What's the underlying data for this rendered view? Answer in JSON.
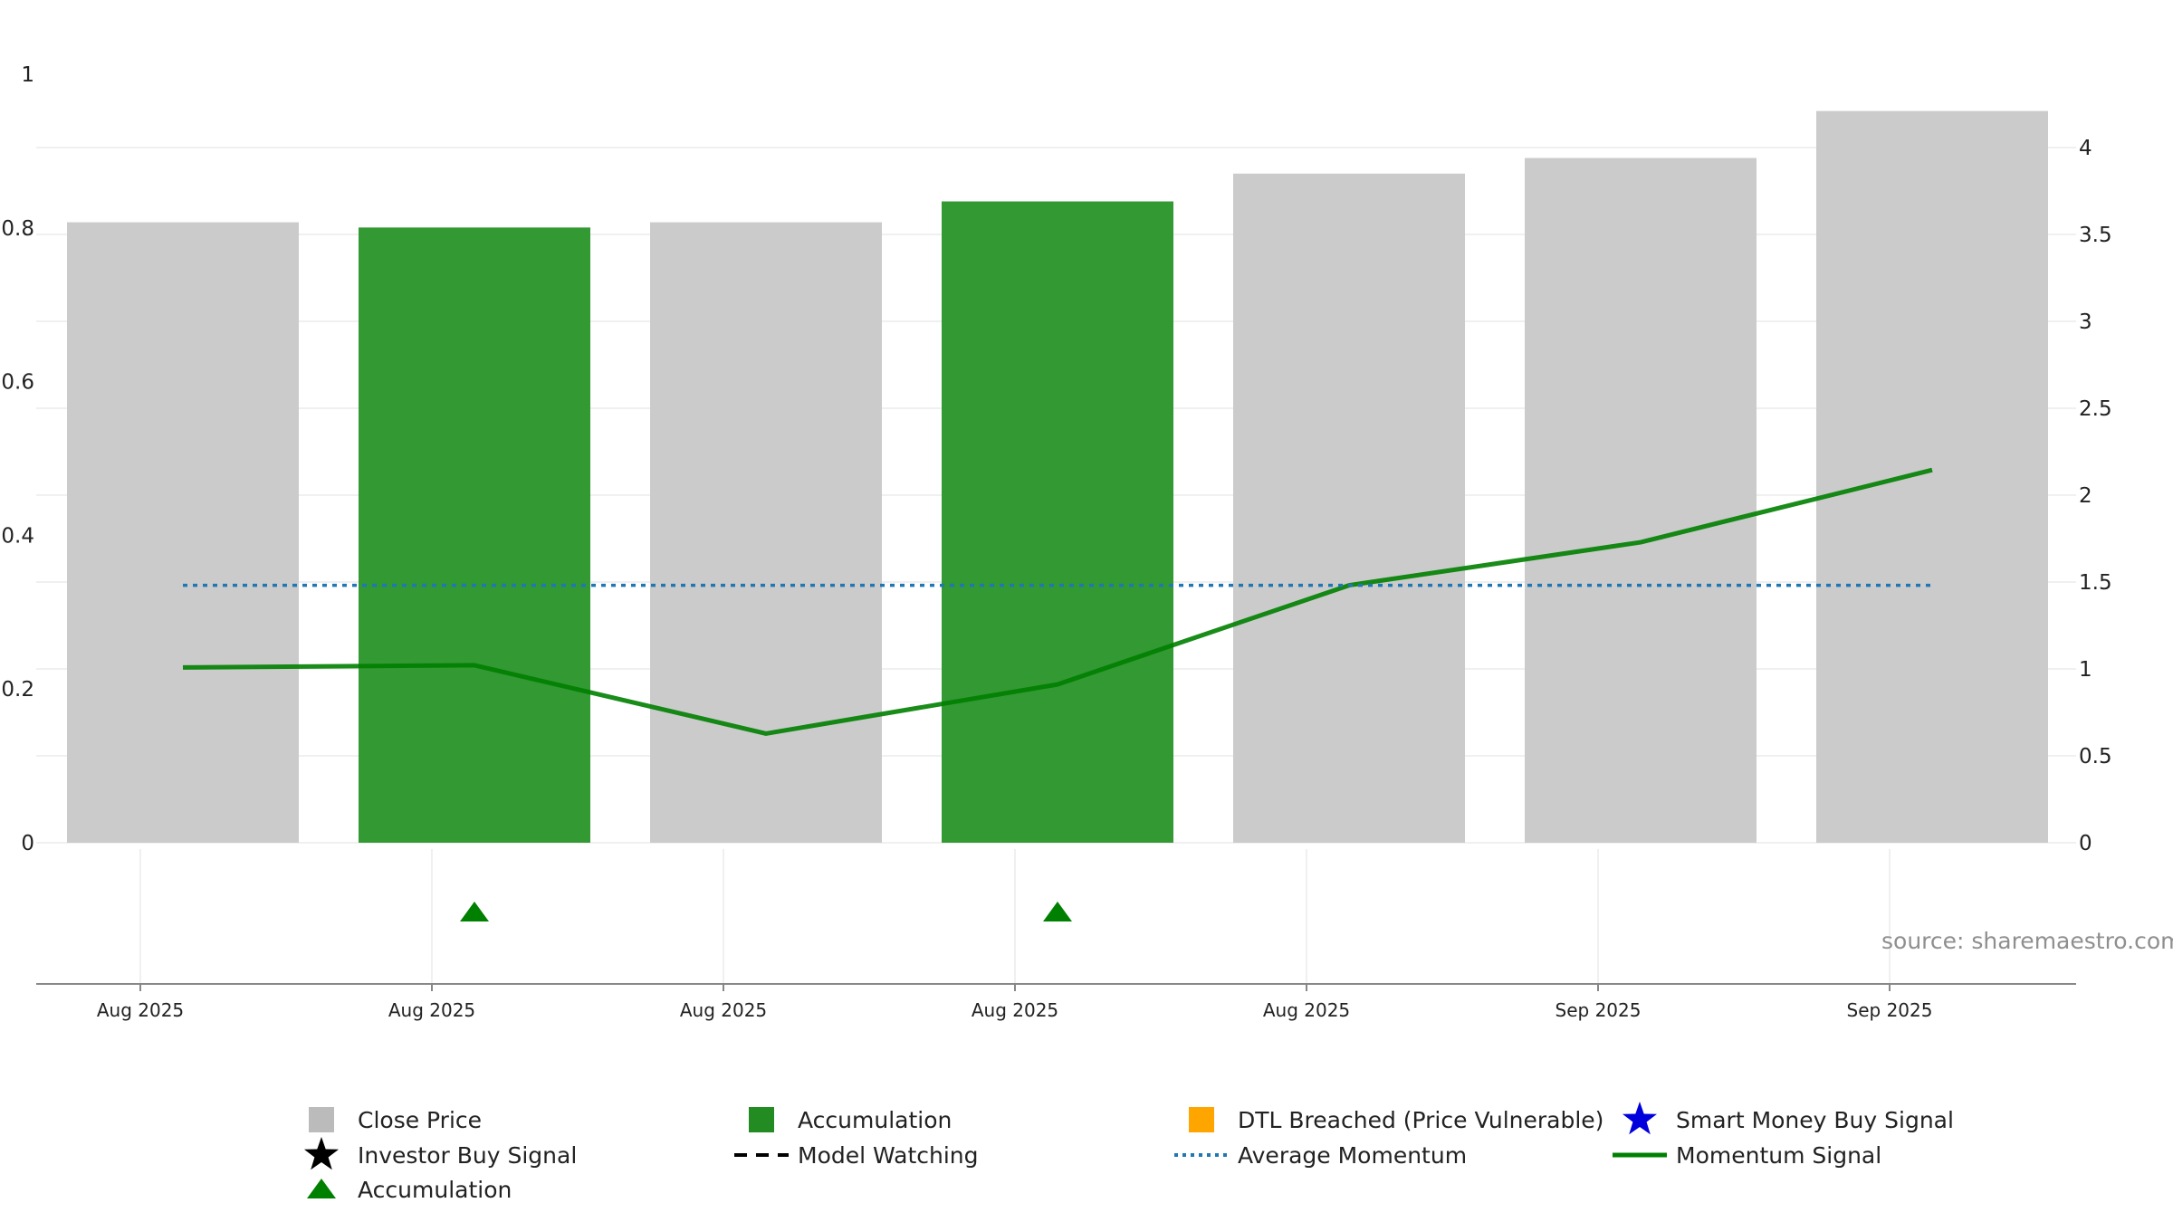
{
  "chart_data": {
    "type": "bar",
    "categories": [
      "Aug 2025",
      "Aug 2025",
      "Aug 2025",
      "Aug 2025",
      "Aug 2025",
      "Sep 2025",
      "Sep 2025"
    ],
    "left_axis": {
      "ylim": [
        0,
        1
      ],
      "ticks": [
        "0",
        "0.2",
        "0.4",
        "0.6",
        "0.8",
        "1"
      ]
    },
    "right_axis": {
      "ylim": [
        0,
        4.0
      ],
      "ticks": [
        "0",
        "0.5",
        "1",
        "1.5",
        "2",
        "2.5",
        "3",
        "3.5",
        "4"
      ]
    },
    "bars": {
      "name": "Close Price",
      "values": [
        3.57,
        3.54,
        3.57,
        3.69,
        3.85,
        3.94,
        4.21
      ],
      "colors": [
        "#cbcbcb",
        "#339933",
        "#cbcbcb",
        "#339933",
        "#cbcbcb",
        "#cbcbcb",
        "#cbcbcb"
      ]
    },
    "series": [
      {
        "name": "Momentum Signal",
        "axis": "left",
        "values": [
          0.228,
          0.231,
          0.142,
          0.206,
          0.335,
          0.391,
          0.485
        ],
        "color": "#008000"
      },
      {
        "name": "Average Momentum",
        "axis": "left",
        "values": [
          0.335,
          0.335,
          0.335,
          0.335,
          0.335,
          0.335,
          0.335
        ],
        "color": "#1f77b4"
      }
    ],
    "markers": [
      {
        "name": "Accumulation",
        "category_index": 1,
        "color": "#008000",
        "shape": "triangle"
      },
      {
        "name": "Accumulation",
        "category_index": 3,
        "color": "#008000",
        "shape": "triangle"
      }
    ],
    "source_text": "source: sharemaestro.com",
    "legend": [
      {
        "label": "Close Price",
        "symbol": "square",
        "color": "#bbbbbb"
      },
      {
        "label": "Accumulation",
        "symbol": "square",
        "color": "#228b22"
      },
      {
        "label": "DTL Breached (Price Vulnerable)",
        "symbol": "square",
        "color": "#ffa500"
      },
      {
        "label": "Smart Money Buy Signal",
        "symbol": "star",
        "color": "#0000dd"
      },
      {
        "label": "Investor Buy Signal",
        "symbol": "star",
        "color": "#000000"
      },
      {
        "label": "Model Watching",
        "symbol": "dash",
        "color": "#000000"
      },
      {
        "label": "Average Momentum",
        "symbol": "dot",
        "color": "#1f77b4"
      },
      {
        "label": "Momentum Signal",
        "symbol": "line",
        "color": "#008000"
      },
      {
        "label": "Accumulation",
        "symbol": "triangle",
        "color": "#008000"
      }
    ]
  }
}
